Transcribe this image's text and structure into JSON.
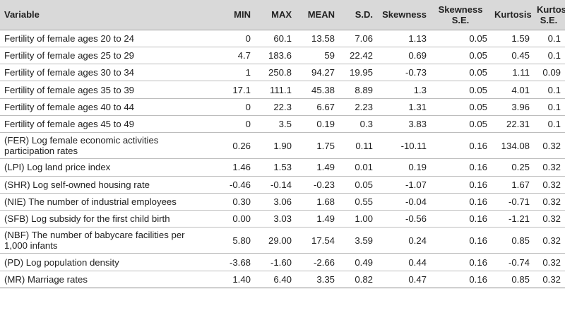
{
  "headers": [
    "Variable",
    "MIN",
    "MAX",
    "MEAN",
    "S.D.",
    "Skewness",
    "Skewness S.E.",
    "Kurtosis",
    "Kurtosis S.E."
  ],
  "rows": [
    {
      "name": "Fertility of female ages 20 to 24",
      "values": [
        "0",
        "60.1",
        "13.58",
        "7.06",
        "1.13",
        "0.05",
        "1.59",
        "0.1"
      ]
    },
    {
      "name": "Fertility of female ages 25 to 29",
      "values": [
        "4.7",
        "183.6",
        "59",
        "22.42",
        "0.69",
        "0.05",
        "0.45",
        "0.1"
      ]
    },
    {
      "name": "Fertility of female ages 30 to 34",
      "values": [
        "1",
        "250.8",
        "94.27",
        "19.95",
        "-0.73",
        "0.05",
        "1.11",
        "0.09"
      ]
    },
    {
      "name": "Fertility of female ages 35 to 39",
      "values": [
        "17.1",
        "111.1",
        "45.38",
        "8.89",
        "1.3",
        "0.05",
        "4.01",
        "0.1"
      ]
    },
    {
      "name": "Fertility of female ages 40 to 44",
      "values": [
        "0",
        "22.3",
        "6.67",
        "2.23",
        "1.31",
        "0.05",
        "3.96",
        "0.1"
      ]
    },
    {
      "name": "Fertility of female ages 45 to 49",
      "values": [
        "0",
        "3.5",
        "0.19",
        "0.3",
        "3.83",
        "0.05",
        "22.31",
        "0.1"
      ]
    },
    {
      "name": "(FER) Log female economic activities participation rates",
      "values": [
        "0.26",
        "1.90",
        "1.75",
        "0.11",
        "-10.11",
        "0.16",
        "134.08",
        "0.32"
      ]
    },
    {
      "name": "(LPI) Log land price index",
      "values": [
        "1.46",
        "1.53",
        "1.49",
        "0.01",
        "0.19",
        "0.16",
        "0.25",
        "0.32"
      ]
    },
    {
      "name": "(SHR) Log self-owned housing rate",
      "values": [
        "-0.46",
        "-0.14",
        "-0.23",
        "0.05",
        "-1.07",
        "0.16",
        "1.67",
        "0.32"
      ]
    },
    {
      "name": "(NIE) The number of industrial employees",
      "values": [
        "0.30",
        "3.06",
        "1.68",
        "0.55",
        "-0.04",
        "0.16",
        "-0.71",
        "0.32"
      ]
    },
    {
      "name": "(SFB) Log subsidy for the first child birth",
      "values": [
        "0.00",
        "3.03",
        "1.49",
        "1.00",
        "-0.56",
        "0.16",
        "-1.21",
        "0.32"
      ]
    },
    {
      "name": "(NBF) The number of babycare facilities per 1,000 infants",
      "values": [
        "5.80",
        "29.00",
        "17.54",
        "3.59",
        "0.24",
        "0.16",
        "0.85",
        "0.32"
      ]
    },
    {
      "name": "(PD) Log population density",
      "values": [
        "-3.68",
        "-1.60",
        "-2.66",
        "0.49",
        "0.44",
        "0.16",
        "-0.74",
        "0.32"
      ]
    },
    {
      "name": "(MR) Marriage rates",
      "values": [
        "1.40",
        "6.40",
        "3.35",
        "0.82",
        "0.47",
        "0.16",
        "0.85",
        "0.32"
      ]
    }
  ]
}
